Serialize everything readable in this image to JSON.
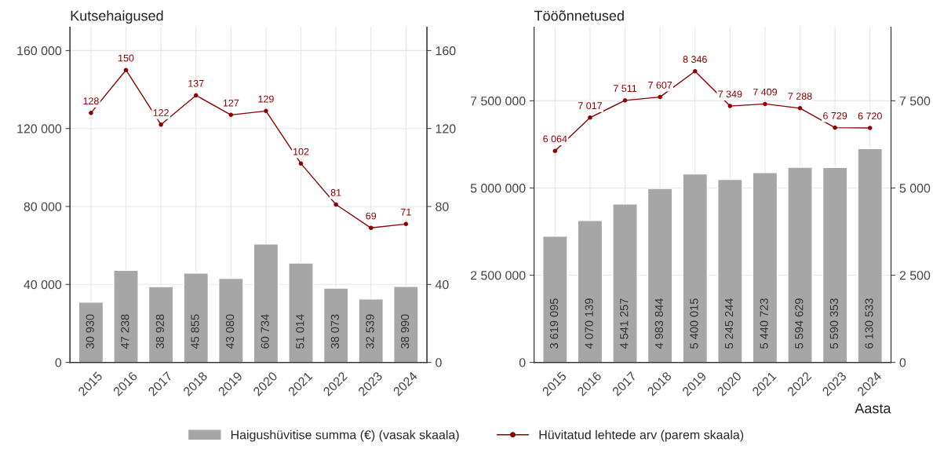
{
  "chart_data": [
    {
      "type": "bar",
      "title": "Kutsehaigused",
      "categories": [
        "2015",
        "2016",
        "2017",
        "2018",
        "2019",
        "2020",
        "2021",
        "2022",
        "2023",
        "2024"
      ],
      "series": [
        {
          "name": "Haigushüvitise summa (€) (vasak skaala)",
          "color": "#a6a6a6",
          "values": [
            30930,
            47238,
            38928,
            45855,
            43080,
            60734,
            51014,
            38073,
            32539,
            38990
          ],
          "value_labels": [
            "30 930",
            "47 238",
            "38 928",
            "45 855",
            "43 080",
            "60 734",
            "51 014",
            "38 073",
            "32 539",
            "38 990"
          ]
        },
        {
          "name": "Hüvitatud lehtede arv (parem skaala)",
          "type": "line",
          "axis": "y2",
          "color": "#8b0000",
          "values": [
            128,
            150,
            122,
            137,
            127,
            129,
            102,
            81,
            69,
            71
          ],
          "value_labels": [
            "128",
            "150",
            "122",
            "137",
            "127",
            "129",
            "102",
            "81",
            "69",
            "71"
          ]
        }
      ],
      "ylim": [
        0,
        172000
      ],
      "yticks": [
        0,
        {
          "value": 40000,
          "label": "40 000"
        },
        {
          "value": 80000,
          "label": "80 000"
        },
        {
          "value": 120000,
          "label": "120 000"
        },
        {
          "value": 160000,
          "label": "160 000"
        }
      ],
      "y2lim": [
        0,
        172
      ],
      "y2ticks": [
        0,
        40,
        80,
        120,
        160
      ],
      "grid": true,
      "legend": "bottom",
      "marker": "circle",
      "line_style": "solid"
    },
    {
      "type": "bar",
      "title": "Tööõnnetused",
      "xlabel": "Aasta",
      "categories": [
        "2015",
        "2016",
        "2017",
        "2018",
        "2019",
        "2020",
        "2021",
        "2022",
        "2023",
        "2024"
      ],
      "series": [
        {
          "name": "Haigushüvitise summa (€) (vasak skaala)",
          "color": "#a6a6a6",
          "values": [
            3619095,
            4070139,
            4541257,
            4983844,
            5400015,
            5245244,
            5440723,
            5594629,
            5590353,
            6130533
          ],
          "value_labels": [
            "3 619 095",
            "4 070 139",
            "4 541 257",
            "4 983 844",
            "5 400 015",
            "5 245 244",
            "5 440 723",
            "5 594 629",
            "5 590 353",
            "6 130 533"
          ]
        },
        {
          "name": "Hüvitatud lehtede arv (parem skaala)",
          "type": "line",
          "axis": "y2",
          "color": "#8b0000",
          "values": [
            6064,
            7017,
            7511,
            7607,
            8346,
            7349,
            7409,
            7288,
            6729,
            6720
          ],
          "value_labels": [
            "6 064",
            "7 017",
            "7 511",
            "7 607",
            "8 346",
            "7 349",
            "7 409",
            "7 288",
            "6 729",
            "6 720"
          ]
        }
      ],
      "ylim": [
        0,
        9610000
      ],
      "yticks": [
        0,
        {
          "value": 2500000,
          "label": "2 500 000"
        },
        {
          "value": 5000000,
          "label": "5 000 000"
        },
        {
          "value": 7500000,
          "label": "7 500 000"
        }
      ],
      "y2lim": [
        0,
        9610
      ],
      "y2ticks": [
        0,
        {
          "value": 2500,
          "label": "2 500"
        },
        {
          "value": 5000,
          "label": "5 000"
        },
        {
          "value": 7500,
          "label": "7 500"
        }
      ],
      "grid": true,
      "legend": "bottom",
      "marker": "circle",
      "line_style": "solid"
    }
  ]
}
